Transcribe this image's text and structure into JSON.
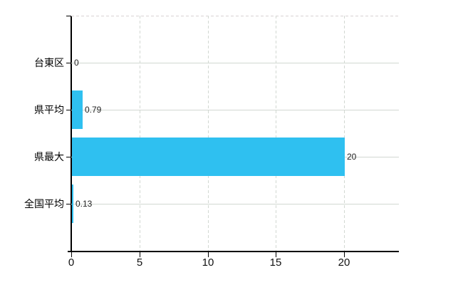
{
  "chart_data": {
    "type": "bar",
    "orientation": "horizontal",
    "title": "",
    "categories": [
      "台東区",
      "県平均",
      "県最大",
      "全国平均"
    ],
    "values": [
      0,
      0.79,
      20,
      0.13
    ],
    "value_labels": [
      "0",
      "0.79",
      "20",
      "0.13"
    ],
    "xticks": [
      0,
      5,
      10,
      15,
      20
    ],
    "xtick_labels": [
      "0",
      "5",
      "10",
      "15",
      "20"
    ],
    "xlim": [
      0,
      24
    ],
    "grid": true,
    "legend": false,
    "colors": {
      "bar": "#2FC0F0",
      "gridline": "#d2d8d2",
      "top_border": "#d8d2d4",
      "axis": "#000000",
      "text": "#111111"
    }
  }
}
